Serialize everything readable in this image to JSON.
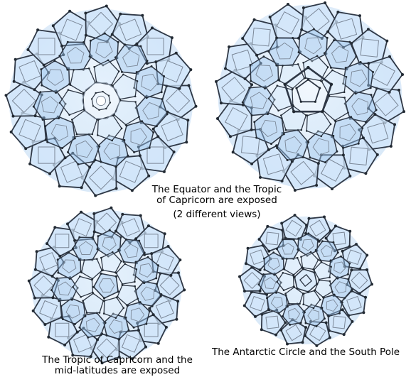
{
  "colors": {
    "face_fill": "#cfe4fa",
    "face_fill_dark": "#9ec6ee",
    "strut": "#2f3846",
    "strut_light": "#7b8797",
    "node": "#222a33",
    "background": "#ffffff"
  },
  "captions": {
    "equator_views": {
      "line1": "The Equator and the Tropic",
      "line2": "of Capricorn are exposed",
      "line3": "(2 different views)"
    },
    "capricorn_midlatitudes": {
      "line1": "The Tropic of Capricorn and the",
      "line2": "mid-latitudes are exposed"
    },
    "antarctic_south_pole": {
      "line1": "The Antarctic Circle and the South Pole"
    }
  },
  "models": [
    {
      "id": "model-top-left",
      "style": "stacked-with-center-cage"
    },
    {
      "id": "model-top-right",
      "style": "pentagon-center"
    },
    {
      "id": "model-bottom-left",
      "style": "mid-latitudes"
    },
    {
      "id": "model-bottom-right",
      "style": "south-pole"
    }
  ]
}
